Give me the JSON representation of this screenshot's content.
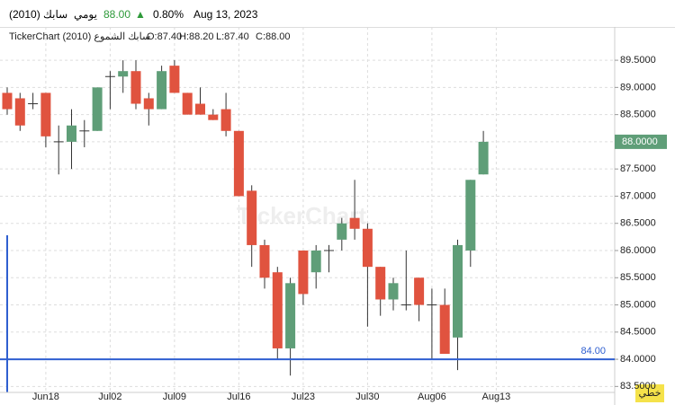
{
  "header": {
    "symbol": "سابك (2010)",
    "period": "يومي",
    "price": "88.00",
    "change": "0.80%",
    "date": "Aug 13, 2023"
  },
  "chart_data": {
    "type": "candlestick",
    "legend": {
      "name": "TickerChart سابك الشموع (2010)",
      "open": "O:87.40",
      "high": "H:88.20",
      "low": "L:87.40",
      "close": "C:88.00"
    },
    "categories": [
      null,
      null,
      null,
      "Jun18",
      null,
      null,
      null,
      null,
      "Jul02",
      null,
      null,
      null,
      null,
      "Jul09",
      null,
      null,
      null,
      null,
      "Jul16",
      null,
      null,
      null,
      null,
      "Jul23",
      null,
      null,
      null,
      null,
      "Jul30",
      null,
      null,
      null,
      null,
      "Aug06",
      null,
      null,
      null,
      null,
      "Aug13"
    ],
    "open": [
      88.9,
      88.8,
      88.7,
      88.9,
      88.0,
      88.0,
      88.2,
      88.2,
      89.2,
      89.2,
      89.3,
      88.8,
      88.6,
      89.4,
      88.9,
      88.7,
      88.5,
      88.6,
      88.2,
      87.1,
      86.1,
      85.6,
      84.2,
      86.0,
      85.6,
      86.0,
      86.2,
      86.6,
      86.4,
      85.7,
      85.1,
      85.0,
      85.5,
      85.0,
      85.0,
      84.4,
      86.0,
      87.4,
      null
    ],
    "high": [
      89.0,
      88.9,
      88.9,
      88.9,
      88.3,
      88.6,
      88.4,
      89.0,
      89.3,
      89.5,
      89.5,
      88.9,
      89.4,
      89.5,
      88.9,
      89.0,
      88.6,
      88.9,
      88.2,
      87.2,
      86.2,
      85.7,
      85.5,
      86.0,
      86.1,
      86.1,
      86.6,
      87.3,
      86.5,
      85.7,
      85.5,
      86.0,
      85.5,
      85.3,
      85.3,
      86.2,
      87.3,
      88.2,
      null
    ],
    "low": [
      88.5,
      88.2,
      88.6,
      87.9,
      87.4,
      87.5,
      87.9,
      88.2,
      88.6,
      88.9,
      88.6,
      88.3,
      88.6,
      88.9,
      88.5,
      88.5,
      88.4,
      88.1,
      87.0,
      85.7,
      85.3,
      84.0,
      83.7,
      85.0,
      85.3,
      85.6,
      86.0,
      86.2,
      84.6,
      84.8,
      84.9,
      84.9,
      84.7,
      84.0,
      84.1,
      83.8,
      85.7,
      87.4,
      null
    ],
    "close": [
      88.6,
      88.3,
      88.7,
      88.1,
      88.0,
      88.3,
      88.2,
      89.0,
      89.2,
      89.3,
      88.7,
      88.6,
      89.3,
      88.9,
      88.5,
      88.5,
      88.4,
      88.2,
      87.0,
      86.1,
      85.5,
      84.2,
      85.4,
      85.2,
      86.0,
      86.0,
      86.5,
      86.4,
      85.7,
      85.1,
      85.4,
      85.0,
      85.0,
      85.0,
      84.1,
      86.1,
      87.3,
      88.0,
      null
    ],
    "up_color": "#5f9e78",
    "down_color": "#e0533f",
    "ylim": [
      83.39,
      90.03
    ],
    "yticks": [
      {
        "value": 83.5,
        "label": "83.5000"
      },
      {
        "value": 84,
        "label": "84.0000"
      },
      {
        "value": 84.5,
        "label": "84.5000"
      },
      {
        "value": 85,
        "label": "85.0000"
      },
      {
        "value": 85.5,
        "label": "85.5000"
      },
      {
        "value": 86,
        "label": "86.0000"
      },
      {
        "value": 86.5,
        "label": "86.5000"
      },
      {
        "value": 87,
        "label": "87.0000"
      },
      {
        "value": 87.5,
        "label": "87.5000"
      },
      {
        "value": 88,
        "label": "88.0000"
      },
      {
        "value": 88.5,
        "label": "88.5000"
      },
      {
        "value": 89,
        "label": "89.0000"
      },
      {
        "value": 89.5,
        "label": "89.5000"
      }
    ],
    "grid": true,
    "last_price": {
      "value": 88,
      "label": "88.0000"
    },
    "hline": {
      "value": 84,
      "label": "84.00",
      "color": "#2f5fd0"
    },
    "watermark": "TickerChart",
    "scale_mode": "خطي"
  }
}
